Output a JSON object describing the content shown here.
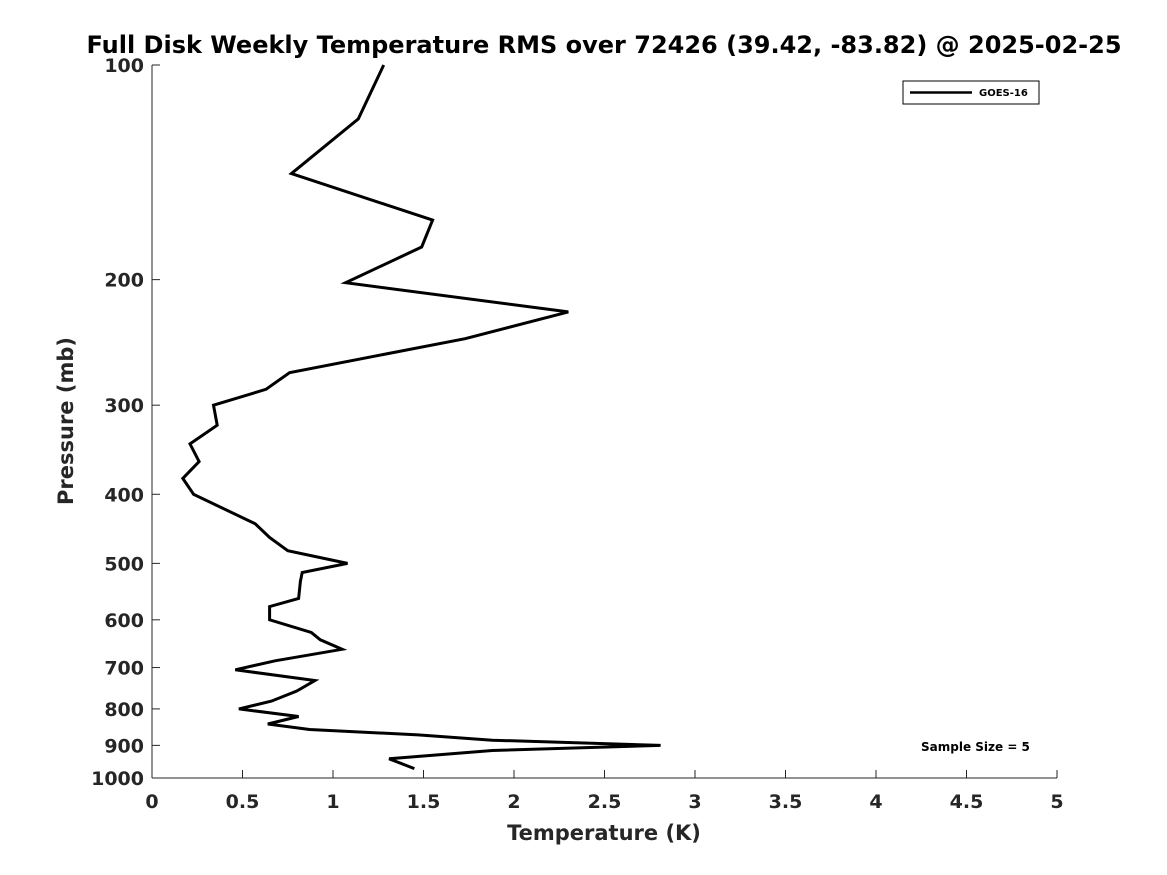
{
  "chart_data": {
    "type": "line",
    "title": "Full Disk Weekly Temperature RMS over 72426 (39.42, -83.82) @ 2025-02-25",
    "xlabel": "Temperature (K)",
    "ylabel": "Pressure (mb)",
    "xlim": [
      0,
      5
    ],
    "ylim": [
      100,
      1000
    ],
    "y_scale": "log",
    "y_reversed": true,
    "x_ticks": [
      "0",
      "0.5",
      "1",
      "1.5",
      "2",
      "2.5",
      "3",
      "3.5",
      "4",
      "4.5",
      "5"
    ],
    "y_ticks": [
      "100",
      "200",
      "300",
      "400",
      "500",
      "600",
      "700",
      "800",
      "900",
      "1000"
    ],
    "grid": false,
    "legend_position": "top-right",
    "annotation": "Sample Size = 5",
    "series": [
      {
        "name": "GOES-16",
        "color": "#000000",
        "x": [
          1.28,
          1.14,
          0.77,
          1.55,
          1.49,
          1.07,
          2.3,
          1.73,
          0.76,
          0.63,
          0.34,
          0.36,
          0.21,
          0.26,
          0.17,
          0.23,
          0.57,
          0.65,
          0.75,
          1.08,
          0.83,
          0.82,
          0.81,
          0.65,
          0.65,
          0.88,
          0.93,
          1.05,
          0.68,
          0.46,
          0.9,
          0.8,
          0.66,
          0.48,
          0.81,
          0.64,
          0.87,
          1.47,
          1.88,
          2.81,
          1.88,
          1.31,
          1.45
        ],
        "y": [
          100,
          119,
          142,
          165,
          180,
          202,
          222,
          242,
          270,
          285,
          300,
          320,
          340,
          360,
          380,
          400,
          440,
          460,
          480,
          500,
          515,
          530,
          560,
          575,
          600,
          625,
          640,
          660,
          685,
          705,
          730,
          755,
          780,
          800,
          820,
          840,
          855,
          870,
          885,
          900,
          915,
          940,
          970
        ]
      }
    ]
  }
}
